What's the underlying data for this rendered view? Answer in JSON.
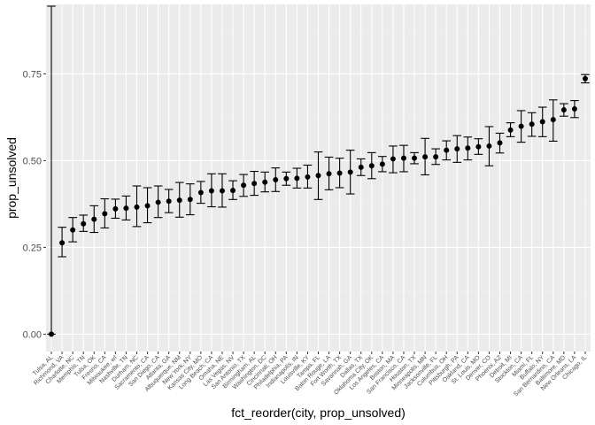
{
  "chart_data": {
    "type": "scatter",
    "xlabel": "fct_reorder(city, prop_unsolved)",
    "ylabel": "prop_unsolved",
    "ylim": [
      -0.05,
      0.95
    ],
    "yticks": [
      0.0,
      0.25,
      0.5,
      0.75
    ],
    "ytick_labels": [
      "0.00",
      "0.25",
      "0.50",
      "0.75"
    ],
    "grid": true,
    "legend": "none",
    "colors": {
      "panel": "#EBEBEB",
      "grid_major": "#FFFFFF",
      "grid_minor": "#F2F2F2",
      "point": "#000000",
      "errorbar": "#000000"
    },
    "categories": [
      "Tulsa, AL",
      "Richmond, VA",
      "Charlotte, NC",
      "Memphis, TN",
      "Tulsa, OK",
      "Fresno, CA",
      "Milwaukee, wI",
      "Nashville, TN",
      "Durham, NC",
      "Sacramento, CA",
      "San Diego, CA",
      "Atlanta, GA",
      "Albuquerque, NM",
      "New York, NY",
      "Kansas City, MO",
      "Long Beach, CA",
      "Omaha, NE",
      "Las Vegas, NV",
      "San Antonio, TX",
      "Birmingham, AL",
      "Washington, DC",
      "Cincinnati, OH",
      "Philadelphia, PA",
      "Indianapolis, IN",
      "Louisville, KY",
      "Tampa, FL",
      "Baton Rouge, LA",
      "Fort Worth, TX",
      "Savannah, GA",
      "Dallas, TX",
      "Oklahoma City, OK",
      "Los Angeles, CA",
      "Boston, MA",
      "San Francisco, CA",
      "Houston, TX",
      "Minneapolis, MN",
      "Jacksonville, FL",
      "Columbus, OH",
      "Pittsburgh, PA",
      "Oakland, CA",
      "St. Louis, MO",
      "Denver, CO",
      "Phoenix, AZ",
      "Detroit, MI",
      "Stockton, CA",
      "Miami, FL",
      "Buffalo, NY",
      "San Bernardino, CA",
      "Baltimore, MD",
      "New Orleans, LA",
      "Chicago, IL"
    ],
    "values": [
      0.0,
      0.263,
      0.3,
      0.318,
      0.331,
      0.347,
      0.361,
      0.363,
      0.366,
      0.37,
      0.38,
      0.383,
      0.386,
      0.388,
      0.408,
      0.413,
      0.413,
      0.414,
      0.429,
      0.434,
      0.438,
      0.445,
      0.448,
      0.449,
      0.453,
      0.457,
      0.462,
      0.464,
      0.467,
      0.481,
      0.485,
      0.49,
      0.505,
      0.507,
      0.507,
      0.511,
      0.511,
      0.53,
      0.534,
      0.536,
      0.54,
      0.542,
      0.551,
      0.588,
      0.599,
      0.605,
      0.612,
      0.618,
      0.646,
      0.649,
      0.736
    ],
    "ci_low": [
      0.0,
      0.223,
      0.266,
      0.296,
      0.293,
      0.306,
      0.334,
      0.329,
      0.31,
      0.321,
      0.336,
      0.35,
      0.337,
      0.344,
      0.377,
      0.367,
      0.366,
      0.388,
      0.397,
      0.4,
      0.41,
      0.411,
      0.429,
      0.421,
      0.421,
      0.388,
      0.416,
      0.422,
      0.404,
      0.457,
      0.448,
      0.468,
      0.465,
      0.468,
      0.491,
      0.459,
      0.489,
      0.502,
      0.495,
      0.502,
      0.518,
      0.485,
      0.522,
      0.569,
      0.553,
      0.57,
      0.569,
      0.556,
      0.628,
      0.624,
      0.724
    ],
    "ci_high": [
      0.945,
      0.308,
      0.336,
      0.343,
      0.37,
      0.39,
      0.389,
      0.398,
      0.427,
      0.422,
      0.427,
      0.417,
      0.437,
      0.433,
      0.44,
      0.462,
      0.462,
      0.442,
      0.46,
      0.469,
      0.467,
      0.479,
      0.467,
      0.478,
      0.487,
      0.525,
      0.51,
      0.507,
      0.53,
      0.505,
      0.523,
      0.512,
      0.542,
      0.544,
      0.523,
      0.564,
      0.534,
      0.557,
      0.572,
      0.568,
      0.563,
      0.598,
      0.579,
      0.609,
      0.644,
      0.638,
      0.654,
      0.675,
      0.664,
      0.673,
      0.748
    ]
  }
}
